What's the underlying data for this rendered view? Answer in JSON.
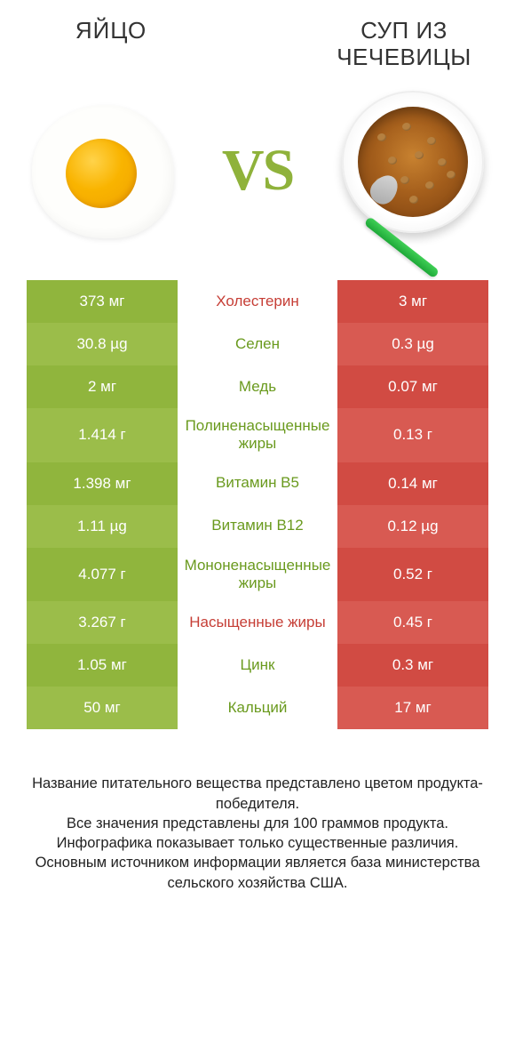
{
  "colors": {
    "green_odd": "#90b53d",
    "green_even": "#9bbd4a",
    "red_odd": "#d14b43",
    "red_even": "#d85a52",
    "nutrient_green": "#6a9a1e",
    "nutrient_red": "#c63e36",
    "vs_color": "#8fb23b"
  },
  "header": {
    "left": "ЯЙЦО",
    "right": "СУП ИЗ ЧЕЧЕВИЦЫ",
    "vs": "VS"
  },
  "rows": [
    {
      "left": "373 мг",
      "name": "Холестерин",
      "right": "3 мг",
      "winner": "right"
    },
    {
      "left": "30.8 µg",
      "name": "Селен",
      "right": "0.3 µg",
      "winner": "left"
    },
    {
      "left": "2 мг",
      "name": "Медь",
      "right": "0.07 мг",
      "winner": "left"
    },
    {
      "left": "1.414 г",
      "name": "Полиненасыщенные жиры",
      "right": "0.13 г",
      "winner": "left"
    },
    {
      "left": "1.398 мг",
      "name": "Витамин B5",
      "right": "0.14 мг",
      "winner": "left"
    },
    {
      "left": "1.11 µg",
      "name": "Витамин B12",
      "right": "0.12 µg",
      "winner": "left"
    },
    {
      "left": "4.077 г",
      "name": "Мононенасыщенные жиры",
      "right": "0.52 г",
      "winner": "left"
    },
    {
      "left": "3.267 г",
      "name": "Насыщенные жиры",
      "right": "0.45 г",
      "winner": "right"
    },
    {
      "left": "1.05 мг",
      "name": "Цинк",
      "right": "0.3 мг",
      "winner": "left"
    },
    {
      "left": "50 мг",
      "name": "Кальций",
      "right": "17 мг",
      "winner": "left"
    }
  ],
  "footer": {
    "l1": "Название питательного вещества представлено цветом продукта-победителя.",
    "l2": "Все значения представлены для 100 граммов продукта.",
    "l3": "Инфографика показывает только существенные различия.",
    "l4": "Основным источником информации является база министерства сельского хозяйства США."
  }
}
